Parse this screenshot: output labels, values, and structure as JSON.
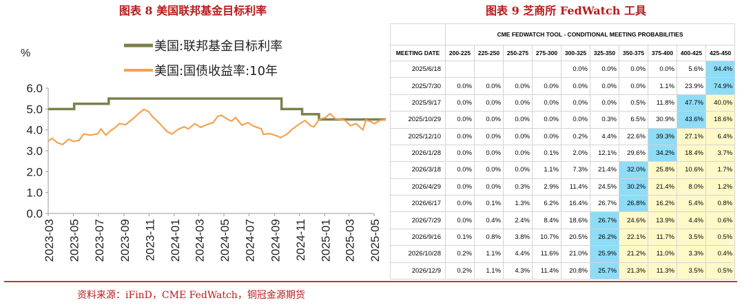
{
  "left_title": "图表 8  美国联邦基金目标利率",
  "right_title": "图表 9  芝商所 FedWatch 工具",
  "source": "资料来源：iFinD，CME FedWatch，铜冠金源期货",
  "colors": {
    "title": "#b71c1c",
    "fed_line": "#7d7f4a",
    "yield_line": "#f4a150",
    "cell_highlight": "#8fdcf7",
    "cell_cyan": "#cdeefa",
    "cell_yellow": "#fff9c8"
  },
  "chart_data": [
    {
      "type": "line",
      "ylabel": "%",
      "ylim": [
        0,
        6
      ],
      "yticks": [
        "0.0",
        "1.0",
        "2.0",
        "3.0",
        "4.0",
        "5.0",
        "6.0"
      ],
      "xlim": [
        "2023-03",
        "2025-05"
      ],
      "xticks": [
        "2023-03",
        "2023-05",
        "2023-07",
        "2023-09",
        "2023-11",
        "2024-01",
        "2024-03",
        "2024-05",
        "2024-07",
        "2024-09",
        "2024-11",
        "2025-01",
        "2025-03",
        "2025-05"
      ],
      "legend_position": "top",
      "grid": false,
      "series": [
        {
          "name": "美国:联邦基金目标利率",
          "kind": "step",
          "points": [
            [
              "2023-03-01",
              5.0
            ],
            [
              "2023-05-03",
              5.25
            ],
            [
              "2023-07-26",
              5.5
            ],
            [
              "2024-09-18",
              5.0
            ],
            [
              "2024-11-07",
              4.75
            ],
            [
              "2024-12-18",
              4.5
            ],
            [
              "2025-05-31",
              4.5
            ]
          ]
        },
        {
          "name": "美国:国债收益率:10年",
          "kind": "line",
          "points": [
            [
              "2023-03-01",
              3.45
            ],
            [
              "2023-03-10",
              3.6
            ],
            [
              "2023-03-24",
              3.38
            ],
            [
              "2023-04-05",
              3.3
            ],
            [
              "2023-04-20",
              3.55
            ],
            [
              "2023-05-01",
              3.45
            ],
            [
              "2023-05-15",
              3.5
            ],
            [
              "2023-05-26",
              3.8
            ],
            [
              "2023-06-12",
              3.75
            ],
            [
              "2023-06-30",
              3.82
            ],
            [
              "2023-07-07",
              4.05
            ],
            [
              "2023-07-19",
              3.75
            ],
            [
              "2023-07-31",
              3.97
            ],
            [
              "2023-08-10",
              4.1
            ],
            [
              "2023-08-21",
              4.3
            ],
            [
              "2023-09-05",
              4.25
            ],
            [
              "2023-09-21",
              4.5
            ],
            [
              "2023-10-05",
              4.75
            ],
            [
              "2023-10-19",
              4.98
            ],
            [
              "2023-10-31",
              4.88
            ],
            [
              "2023-11-10",
              4.62
            ],
            [
              "2023-11-21",
              4.42
            ],
            [
              "2023-12-01",
              4.22
            ],
            [
              "2023-12-15",
              3.92
            ],
            [
              "2023-12-27",
              3.8
            ],
            [
              "2024-01-10",
              4.02
            ],
            [
              "2024-01-25",
              4.15
            ],
            [
              "2024-02-05",
              4.05
            ],
            [
              "2024-02-20",
              4.3
            ],
            [
              "2024-03-05",
              4.12
            ],
            [
              "2024-03-20",
              4.25
            ],
            [
              "2024-04-05",
              4.35
            ],
            [
              "2024-04-16",
              4.65
            ],
            [
              "2024-04-25",
              4.7
            ],
            [
              "2024-05-10",
              4.5
            ],
            [
              "2024-05-20",
              4.42
            ],
            [
              "2024-05-29",
              4.6
            ],
            [
              "2024-06-14",
              4.22
            ],
            [
              "2024-06-28",
              4.35
            ],
            [
              "2024-07-12",
              4.18
            ],
            [
              "2024-07-31",
              4.05
            ],
            [
              "2024-08-05",
              3.78
            ],
            [
              "2024-08-20",
              3.82
            ],
            [
              "2024-09-06",
              3.72
            ],
            [
              "2024-09-16",
              3.63
            ],
            [
              "2024-09-30",
              3.78
            ],
            [
              "2024-10-15",
              4.05
            ],
            [
              "2024-10-31",
              4.28
            ],
            [
              "2024-11-14",
              4.45
            ],
            [
              "2024-11-29",
              4.18
            ],
            [
              "2024-12-06",
              4.15
            ],
            [
              "2024-12-18",
              4.5
            ],
            [
              "2025-01-03",
              4.6
            ],
            [
              "2025-01-14",
              4.78
            ],
            [
              "2025-01-27",
              4.53
            ],
            [
              "2025-02-10",
              4.5
            ],
            [
              "2025-02-20",
              4.45
            ],
            [
              "2025-03-04",
              4.2
            ],
            [
              "2025-03-18",
              4.3
            ],
            [
              "2025-04-04",
              4.0
            ],
            [
              "2025-04-11",
              4.48
            ],
            [
              "2025-04-22",
              4.4
            ],
            [
              "2025-05-02",
              4.3
            ],
            [
              "2025-05-15",
              4.45
            ],
            [
              "2025-05-31",
              4.5
            ]
          ]
        }
      ]
    },
    {
      "type": "table",
      "title": "CME FEDWATCH TOOL - CONDITIONAL MEETING PROBABILITIES",
      "header_first": "MEETING DATE",
      "columns": [
        "200-225",
        "225-250",
        "250-275",
        "275-300",
        "300-325",
        "325-350",
        "350-375",
        "375-400",
        "400-425",
        "425-450"
      ],
      "rows": [
        {
          "date": "2025/6/18",
          "values": [
            "",
            "",
            "",
            "",
            "0.0%",
            "0.0%",
            "0.0%",
            "0.0%",
            "5.6%",
            "94.4%"
          ],
          "peak": 9
        },
        {
          "date": "2025/7/30",
          "values": [
            "0.0%",
            "0.0%",
            "0.0%",
            "0.0%",
            "0.0%",
            "0.0%",
            "0.0%",
            "1.1%",
            "23.9%",
            "74.9%"
          ],
          "peak": 9
        },
        {
          "date": "2025/9/17",
          "values": [
            "0.0%",
            "0.0%",
            "0.0%",
            "0.0%",
            "0.0%",
            "0.0%",
            "0.5%",
            "11.8%",
            "47.7%",
            "40.0%"
          ],
          "peak": 8
        },
        {
          "date": "2025/10/29",
          "values": [
            "0.0%",
            "0.0%",
            "0.0%",
            "0.0%",
            "0.0%",
            "0.3%",
            "6.5%",
            "30.9%",
            "43.6%",
            "18.6%"
          ],
          "peak": 8
        },
        {
          "date": "2025/12/10",
          "values": [
            "0.0%",
            "0.0%",
            "0.0%",
            "0.0%",
            "0.2%",
            "4.4%",
            "22.6%",
            "39.3%",
            "27.1%",
            "6.4%"
          ],
          "peak": 7
        },
        {
          "date": "2026/1/28",
          "values": [
            "0.0%",
            "0.0%",
            "0.0%",
            "0.1%",
            "2.0%",
            "12.1%",
            "29.6%",
            "34.2%",
            "18.4%",
            "3.7%"
          ],
          "peak": 7
        },
        {
          "date": "2026/3/18",
          "values": [
            "0.0%",
            "0.0%",
            "0.0%",
            "1.1%",
            "7.3%",
            "21.4%",
            "32.0%",
            "25.8%",
            "10.6%",
            "1.7%"
          ],
          "peak": 6
        },
        {
          "date": "2026/4/29",
          "values": [
            "0.0%",
            "0.0%",
            "0.3%",
            "2.9%",
            "11.4%",
            "24.5%",
            "30.2%",
            "21.4%",
            "8.0%",
            "1.2%"
          ],
          "peak": 6
        },
        {
          "date": "2026/6/17",
          "values": [
            "0.0%",
            "0.1%",
            "1.3%",
            "6.2%",
            "16.4%",
            "26.7%",
            "26.8%",
            "16.2%",
            "5.4%",
            "0.8%"
          ],
          "peak": 6
        },
        {
          "date": "2026/7/29",
          "values": [
            "0.0%",
            "0.4%",
            "2.4%",
            "8.4%",
            "18.6%",
            "26.7%",
            "24.6%",
            "13.9%",
            "4.4%",
            "0.6%"
          ],
          "peak": 5
        },
        {
          "date": "2026/9/16",
          "values": [
            "0.1%",
            "0.8%",
            "3.8%",
            "10.7%",
            "20.5%",
            "26.2%",
            "22.1%",
            "11.7%",
            "3.5%",
            "0.5%"
          ],
          "peak": 5
        },
        {
          "date": "2026/10/28",
          "values": [
            "0.2%",
            "1.1%",
            "4.4%",
            "11.6%",
            "21.0%",
            "25.9%",
            "21.2%",
            "11.0%",
            "3.3%",
            "0.4%"
          ],
          "peak": 5
        },
        {
          "date": "2026/12/9",
          "values": [
            "0.2%",
            "1.1%",
            "4.3%",
            "11.4%",
            "20.8%",
            "25.7%",
            "21.3%",
            "11.3%",
            "3.5%",
            "0.5%"
          ],
          "peak": 5
        }
      ]
    }
  ]
}
